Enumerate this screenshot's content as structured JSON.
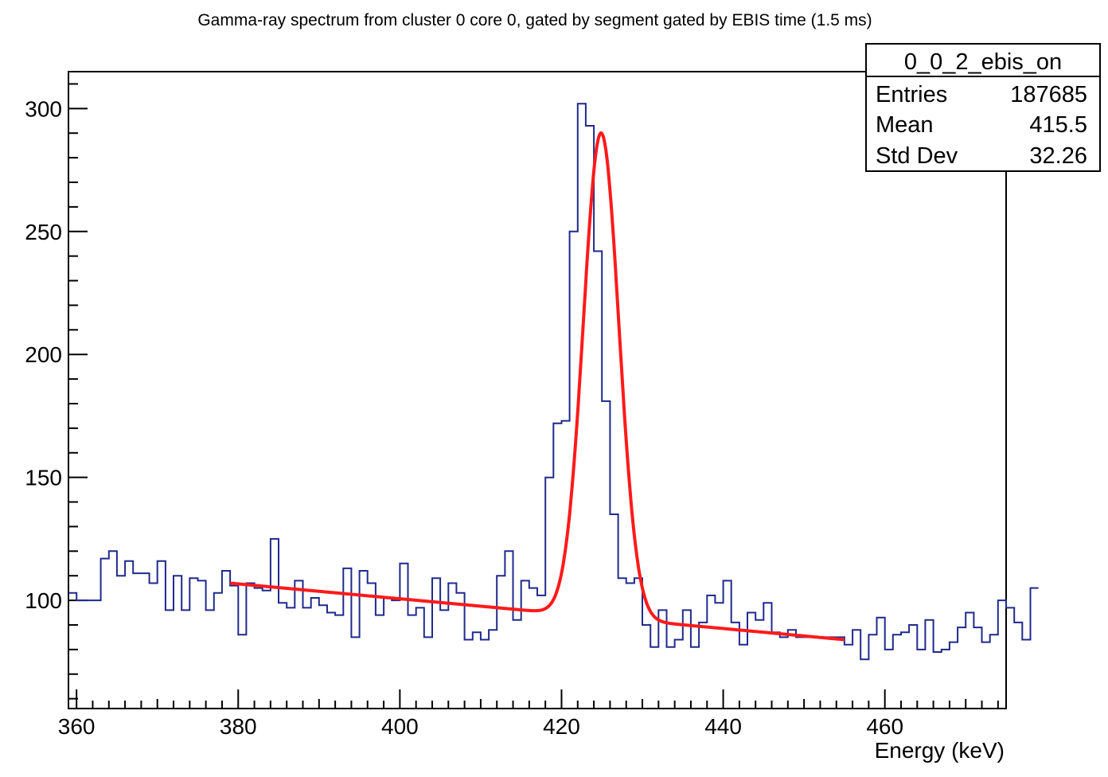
{
  "chart_data": {
    "type": "line",
    "title": "Gamma-ray spectrum from cluster 0 core 0, gated by segment  gated by EBIS time (1.5 ms)",
    "xlabel": "Energy (keV)",
    "ylabel": "",
    "xlim": [
      359,
      475
    ],
    "ylim": [
      56,
      315
    ],
    "x_ticks": [
      360,
      380,
      400,
      420,
      440,
      460
    ],
    "y_ticks": [
      100,
      150,
      200,
      250,
      300
    ],
    "stats_box": {
      "name": "0_0_2_ebis_on",
      "rows": [
        {
          "label": "Entries",
          "value": "187685"
        },
        {
          "label": "Mean",
          "value": "415.5"
        },
        {
          "label": "Std Dev",
          "value": "32.26"
        }
      ]
    },
    "series": [
      {
        "kind": "histogram",
        "color": "#1f2a8c",
        "bin_width": 1,
        "x_start": 359,
        "values": [
          103,
          100,
          100,
          100,
          117,
          120,
          110,
          116,
          111,
          111,
          107,
          116,
          96,
          110,
          96,
          109,
          108,
          96,
          103,
          112,
          106,
          86,
          107,
          105,
          104,
          125,
          99,
          97,
          108,
          97,
          101,
          98,
          95,
          94,
          113,
          85,
          112,
          107,
          94,
          101,
          100,
          115,
          94,
          97,
          85,
          109,
          96,
          107,
          103,
          84,
          87,
          84,
          88,
          110,
          120,
          92,
          108,
          105,
          102,
          150,
          172,
          173,
          250,
          302,
          293,
          242,
          181,
          135,
          109,
          107,
          109,
          90,
          81,
          96,
          81,
          84,
          96,
          81,
          91,
          102,
          99,
          108,
          91,
          82,
          95,
          92,
          99,
          87,
          85,
          88,
          85,
          85,
          85,
          85,
          85,
          85,
          82,
          88,
          76,
          86,
          93,
          80,
          86,
          87,
          90,
          80,
          92,
          79,
          80,
          83,
          89,
          95,
          89,
          83,
          86,
          100,
          97,
          91,
          84,
          105
        ]
      },
      {
        "kind": "fit",
        "color": "#ff1a1a",
        "function": "gaussian + linear background",
        "x_range": [
          379,
          455
        ],
        "background_at_x_start": 107,
        "background_at_x_end": 84,
        "peak_center": 424.9,
        "peak_sigma": 2.2,
        "peak_amplitude": 197
      }
    ]
  }
}
